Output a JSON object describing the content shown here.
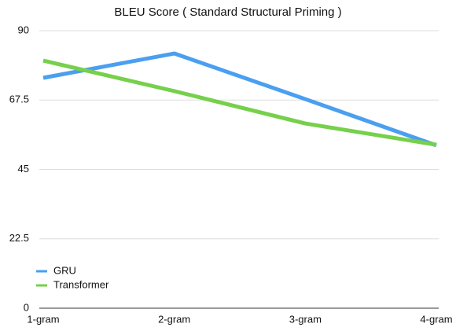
{
  "chart_data": {
    "type": "line",
    "title": "BLEU Score ( Standard Structural Priming )",
    "categories": [
      "1-gram",
      "2-gram",
      "3-gram",
      "4-gram"
    ],
    "series": [
      {
        "name": "GRU",
        "color": "#4a9ff0",
        "values": [
          74.7,
          82.6,
          67.8,
          52.8
        ]
      },
      {
        "name": "Transformer",
        "color": "#76d04b",
        "values": [
          80.3,
          70.4,
          59.9,
          53.0
        ]
      }
    ],
    "ylim": [
      0,
      90
    ],
    "yticks": [
      0,
      22.5,
      45,
      67.5,
      90
    ],
    "grid": true,
    "legend": "lower left"
  }
}
